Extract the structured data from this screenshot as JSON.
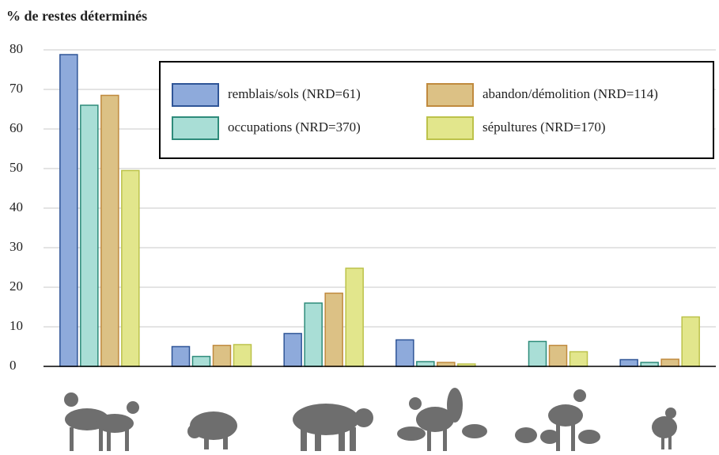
{
  "chart_data": {
    "type": "bar",
    "title": "% de restes déterminés",
    "categories": [
      null,
      null,
      null,
      null,
      null,
      null
    ],
    "series": [
      {
        "name": "remblais/sols (NRD=61)",
        "color": "#8eaadb",
        "border": "#2f5597",
        "values": [
          78.8,
          5,
          8.3,
          6.7,
          0,
          1.7
        ]
      },
      {
        "name": "occupations (NRD=370)",
        "color": "#a9ded6",
        "border": "#2e8b7a",
        "values": [
          66,
          2.5,
          16,
          1.2,
          6.3,
          1
        ]
      },
      {
        "name": "abandon/démolition (NRD=114)",
        "color": "#dcc185",
        "border": "#c08a3e",
        "values": [
          68.5,
          5.3,
          18.5,
          1,
          5.3,
          1.8
        ]
      },
      {
        "name": "sépultures (NRD=170)",
        "color": "#e2e68c",
        "border": "#bcc24a",
        "values": [
          49.5,
          5.5,
          24.8,
          0.6,
          3.7,
          12.5
        ]
      }
    ],
    "ylim": [
      0,
      80
    ],
    "yticks": [
      0,
      10,
      20,
      30,
      40,
      50,
      60,
      70,
      80
    ],
    "grid": true,
    "legend": "top-right"
  }
}
